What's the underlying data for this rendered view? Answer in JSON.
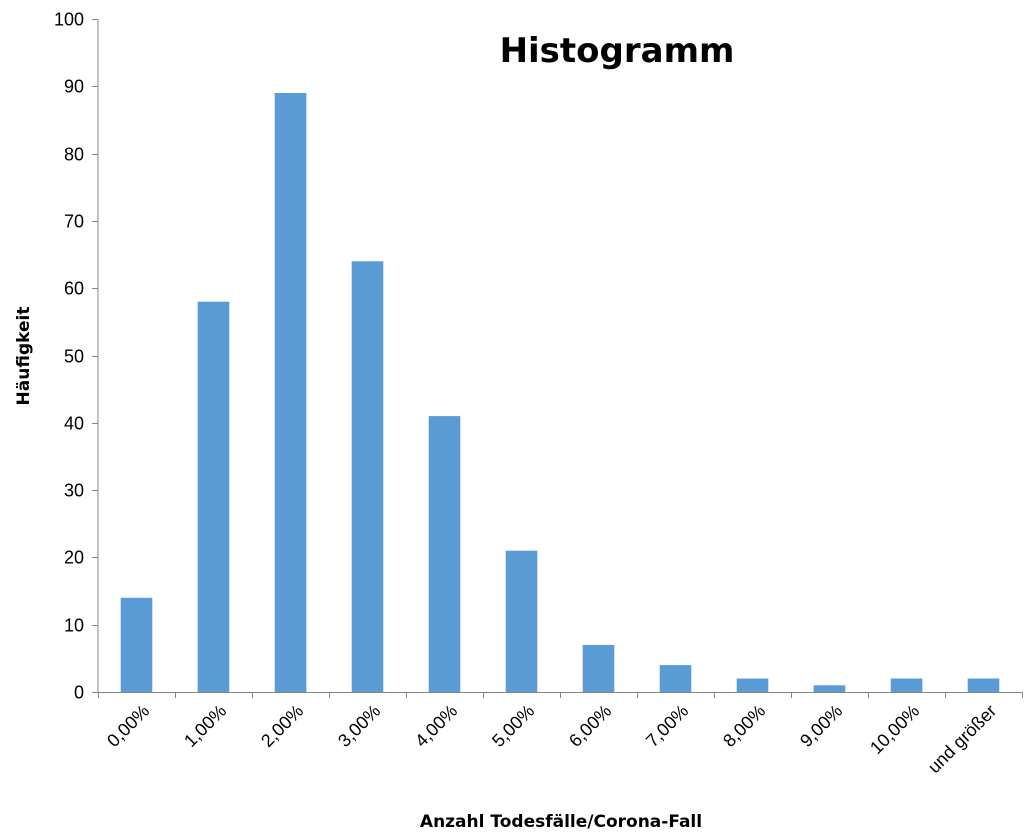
{
  "chart_data": {
    "type": "bar",
    "title": "Histogramm",
    "xlabel": "Anzahl Todesfälle/Corona-Fall",
    "ylabel": "Häufigkeit",
    "categories": [
      "0,00%",
      "1,00%",
      "2,00%",
      "3,00%",
      "4,00%",
      "5,00%",
      "6,00%",
      "7,00%",
      "8,00%",
      "9,00%",
      "10,00%",
      "und größer"
    ],
    "values": [
      14,
      58,
      89,
      64,
      41,
      21,
      7,
      4,
      2,
      1,
      2,
      2
    ],
    "ylim": [
      0,
      100
    ],
    "yticks": [
      "0",
      "10",
      "20",
      "30",
      "40",
      "50",
      "60",
      "70",
      "80",
      "90",
      "100"
    ],
    "grid": false,
    "legend": "none",
    "bar_color": "#5b9bd5",
    "axis_color": "#868686"
  }
}
